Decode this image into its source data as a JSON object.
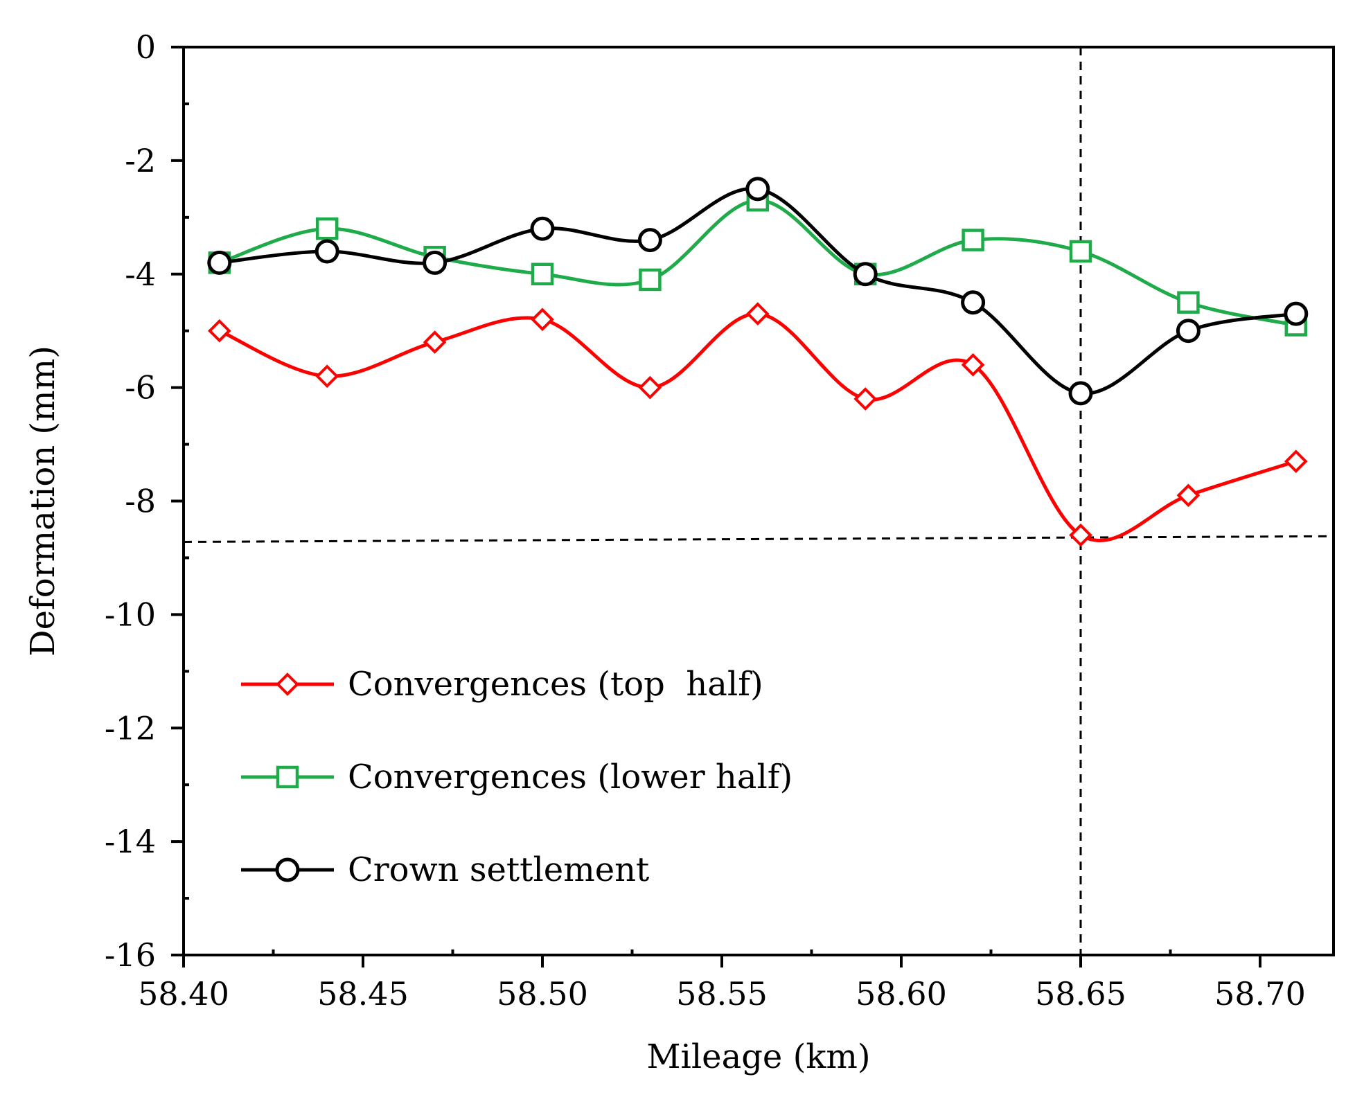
{
  "chart_data": {
    "type": "line",
    "title": "",
    "xlabel": "Mileage (km)",
    "ylabel": "Deformation (mm)",
    "xlim": [
      58.4,
      58.72
    ],
    "ylim": [
      -16,
      0
    ],
    "x_ticks": [
      "58.40",
      "58.45",
      "58.50",
      "58.55",
      "58.60",
      "58.65",
      "58.70"
    ],
    "y_ticks": [
      "0",
      "-2",
      "-4",
      "-6",
      "-8",
      "-10",
      "-12",
      "-14",
      "-16"
    ],
    "x": [
      58.41,
      58.44,
      58.47,
      58.5,
      58.53,
      58.56,
      58.59,
      58.62,
      58.65,
      58.68,
      58.71
    ],
    "series": [
      {
        "name": "Convergences (top  half)",
        "color": "#ff0000",
        "marker": "diamond",
        "values": [
          -5.0,
          -5.8,
          -5.2,
          -4.8,
          -6.0,
          -4.7,
          -6.2,
          -5.6,
          -8.6,
          -7.9,
          -7.3
        ]
      },
      {
        "name": "Convergences (lower half)",
        "color": "#1fab4a",
        "marker": "square",
        "values": [
          -3.8,
          -3.2,
          -3.7,
          -4.0,
          -4.1,
          -2.7,
          -4.0,
          -3.4,
          -3.6,
          -4.5,
          -4.9
        ]
      },
      {
        "name": "Crown settlement",
        "color": "#000000",
        "marker": "circle",
        "values": [
          -3.8,
          -3.6,
          -3.8,
          -3.2,
          -3.4,
          -2.5,
          -4.0,
          -4.5,
          -6.1,
          -5.0,
          -4.7
        ]
      }
    ],
    "reference_lines": {
      "vertical_x": 58.65,
      "horizontal_y_start": -8.72,
      "horizontal_y_end": -8.62
    },
    "legend": "inside-lower-left",
    "grid": false
  }
}
